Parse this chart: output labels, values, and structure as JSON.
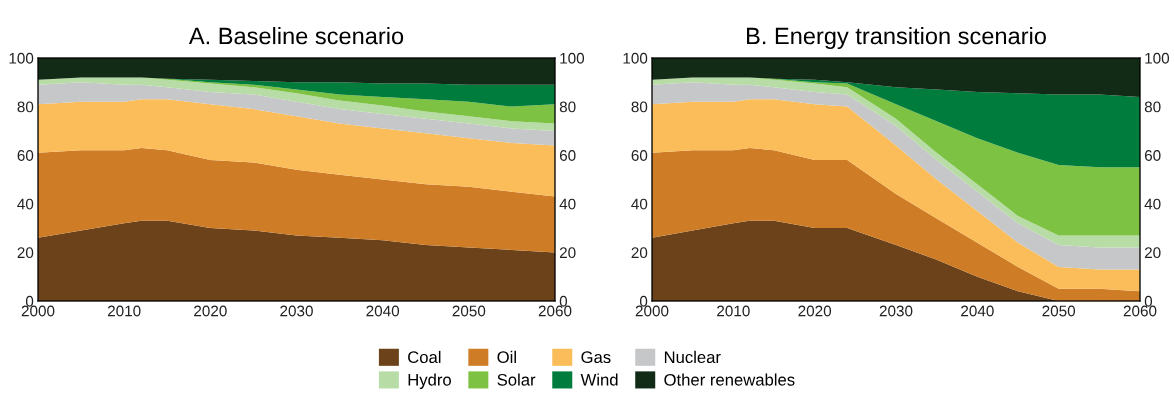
{
  "chart_data": [
    {
      "type": "area",
      "stacked": true,
      "title": "A. Baseline scenario",
      "x": [
        2000,
        2005,
        2010,
        2012,
        2015,
        2020,
        2025,
        2030,
        2035,
        2040,
        2045,
        2050,
        2055,
        2060
      ],
      "xlim": [
        2000,
        2060
      ],
      "xticks": [
        2000,
        2010,
        2020,
        2030,
        2040,
        2050,
        2060
      ],
      "ylim": [
        0,
        100
      ],
      "yticks": [
        0,
        20,
        40,
        60,
        80,
        100
      ],
      "y2lim": [
        0,
        100
      ],
      "y2ticks": [
        0,
        20,
        40,
        60,
        80,
        100
      ],
      "grid": false,
      "legend": "bottom",
      "series": [
        {
          "name": "Coal",
          "color": "#6b4219",
          "values": [
            26,
            29,
            32,
            33,
            33,
            30,
            29,
            27,
            26,
            25,
            23,
            22,
            21,
            20
          ]
        },
        {
          "name": "Oil",
          "color": "#cf7c27",
          "values": [
            35,
            33,
            30,
            30,
            29,
            28,
            28,
            27,
            26,
            25,
            25,
            25,
            24,
            23
          ]
        },
        {
          "name": "Gas",
          "color": "#fbbd5a",
          "values": [
            20,
            20,
            20,
            20,
            21,
            23,
            22,
            22,
            21,
            21,
            21,
            20,
            20,
            21
          ]
        },
        {
          "name": "Nuclear",
          "color": "#c6c7c9",
          "values": [
            8,
            8,
            7,
            6,
            5,
            5,
            6,
            6,
            6,
            6,
            6,
            6,
            6,
            6
          ]
        },
        {
          "name": "Hydro",
          "color": "#b8dca6",
          "values": [
            2,
            2,
            3,
            3,
            3,
            3.5,
            3,
            3.5,
            3.5,
            3.5,
            3,
            3,
            3,
            3
          ]
        },
        {
          "name": "Solar",
          "color": "#7dc242",
          "values": [
            0,
            0,
            0,
            0,
            0.5,
            0.5,
            1,
            1.5,
            2.5,
            3.5,
            5,
            6,
            6,
            8
          ]
        },
        {
          "name": "Wind",
          "color": "#007d3d",
          "values": [
            0,
            0,
            0,
            0,
            0,
            1,
            1.5,
            3,
            5,
            5.5,
            6.5,
            7,
            9,
            8
          ]
        },
        {
          "name": "Other renewables",
          "color": "#122b16",
          "values": [
            9,
            8,
            8,
            8,
            8.5,
            9,
            9.5,
            10,
            10,
            10.5,
            10.5,
            11,
            11,
            11
          ]
        }
      ]
    },
    {
      "type": "area",
      "stacked": true,
      "title": "B. Energy transition scenario",
      "x": [
        2000,
        2005,
        2010,
        2012,
        2015,
        2020,
        2024,
        2030,
        2035,
        2040,
        2045,
        2050,
        2055,
        2060
      ],
      "xlim": [
        2000,
        2060
      ],
      "xticks": [
        2000,
        2010,
        2020,
        2030,
        2040,
        2050,
        2060
      ],
      "ylim": [
        0,
        100
      ],
      "yticks": [
        0,
        20,
        40,
        60,
        80,
        100
      ],
      "y2lim": [
        0,
        100
      ],
      "y2ticks": [
        0,
        20,
        40,
        60,
        80,
        100
      ],
      "grid": false,
      "series": [
        {
          "name": "Coal",
          "color": "#6b4219",
          "values": [
            26,
            29,
            32,
            33,
            33,
            30,
            30,
            23,
            17,
            10,
            4,
            0,
            0,
            0
          ]
        },
        {
          "name": "Oil",
          "color": "#cf7c27",
          "values": [
            35,
            33,
            30,
            30,
            29,
            28,
            28,
            21,
            17,
            14,
            10,
            5,
            5,
            4
          ]
        },
        {
          "name": "Gas",
          "color": "#fbbd5a",
          "values": [
            20,
            20,
            20,
            20,
            21,
            23,
            22,
            20,
            16,
            13,
            10,
            9,
            8,
            9
          ]
        },
        {
          "name": "Nuclear",
          "color": "#c6c7c9",
          "values": [
            8,
            8,
            7,
            6,
            5,
            5,
            5,
            8,
            8,
            8,
            8,
            9,
            9,
            9
          ]
        },
        {
          "name": "Hydro",
          "color": "#b8dca6",
          "values": [
            2,
            2,
            3,
            3,
            3,
            3.5,
            3,
            3,
            3,
            3,
            3,
            4,
            5,
            5
          ]
        },
        {
          "name": "Solar",
          "color": "#7dc242",
          "values": [
            0,
            0,
            0,
            0,
            0.5,
            0.5,
            1.5,
            6,
            13,
            19,
            26,
            29,
            28,
            28
          ]
        },
        {
          "name": "Wind",
          "color": "#007d3d",
          "values": [
            0,
            0,
            0,
            0,
            0,
            1,
            0.5,
            7,
            13,
            19,
            24.5,
            29,
            30,
            29
          ]
        },
        {
          "name": "Other renewables",
          "color": "#122b16",
          "values": [
            9,
            8,
            8,
            8,
            8.5,
            9,
            10,
            12,
            13,
            14,
            14.5,
            15,
            15,
            16
          ]
        }
      ]
    }
  ]
}
